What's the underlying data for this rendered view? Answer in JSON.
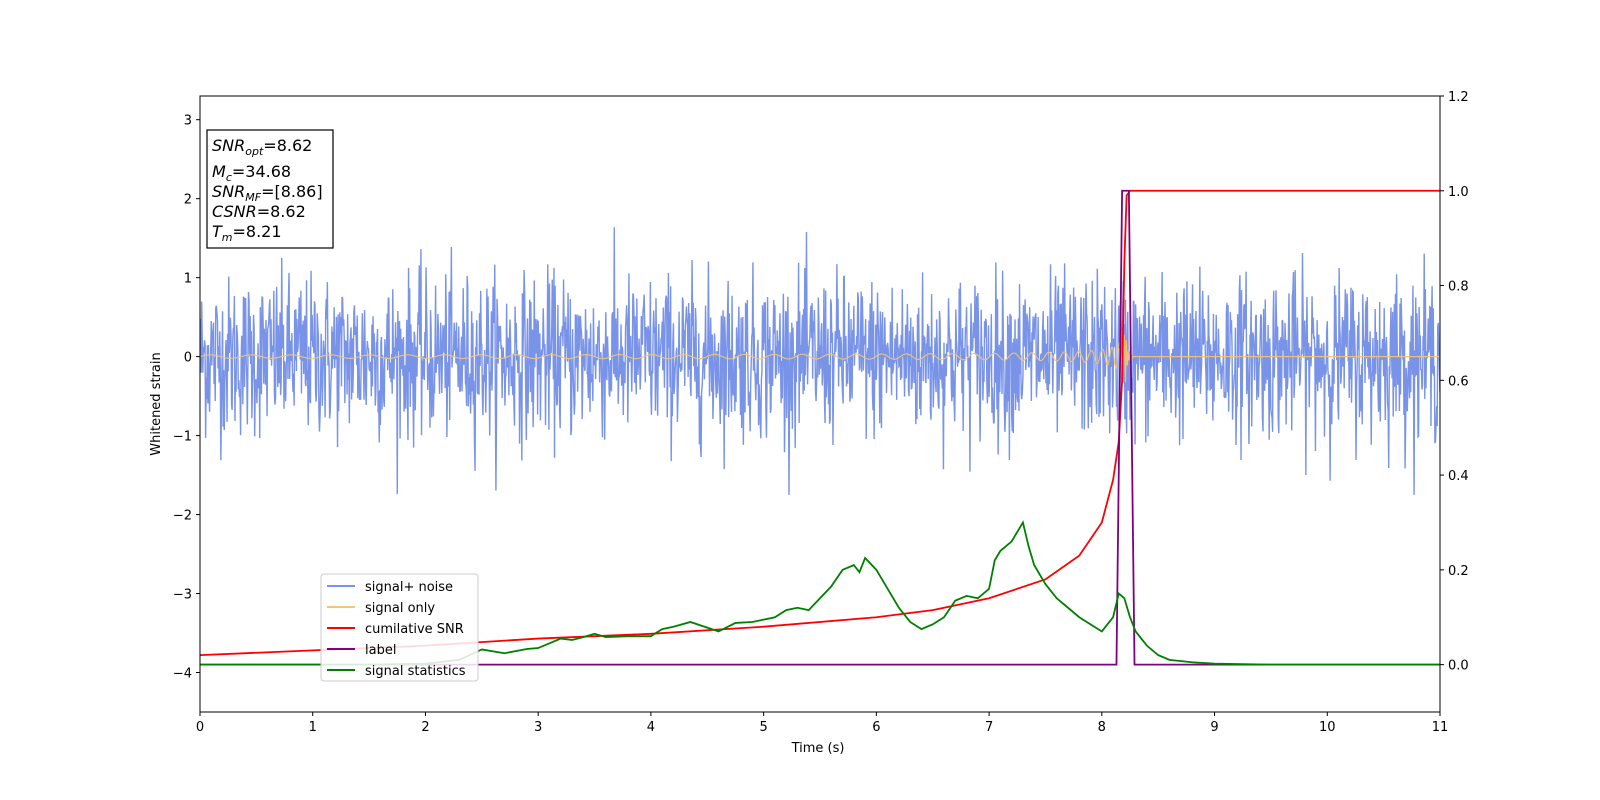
{
  "chart_data": {
    "type": "line",
    "xlabel": "Time (s)",
    "ylabel": "Whitened strain",
    "xlim": [
      0,
      11
    ],
    "ylim": [
      -4.5,
      3.3
    ],
    "ylim_right": [
      -0.1,
      1.2
    ],
    "xticks": [
      "0",
      "1",
      "2",
      "3",
      "4",
      "5",
      "6",
      "7",
      "8",
      "9",
      "10",
      "11"
    ],
    "yticks": [
      "3",
      "2",
      "1",
      "0",
      "−1",
      "−2",
      "−3",
      "−4"
    ],
    "yticks_right": [
      "0.0",
      "0.2",
      "0.4",
      "0.6",
      "0.8",
      "1.0",
      "1.2"
    ],
    "grid": false,
    "legend_position": "lower-left",
    "annotation": [
      {
        "main": "SNR",
        "sub": "opt",
        "rest": "=8.62"
      },
      {
        "main": "M",
        "sub": "c",
        "rest": "=34.68"
      },
      {
        "main": "SNR",
        "sub": "MF",
        "rest": "=[8.86]"
      },
      {
        "main": "CSNR",
        "sub": "",
        "rest": "=8.62"
      },
      {
        "main": "T",
        "sub": "m",
        "rest": "=8.21"
      }
    ],
    "series": [
      {
        "name": "signal+ noise",
        "axis": "left",
        "color": "#7893e8",
        "description_values": "whitened noise with amplitude about ±1, peaks to about ±1.8",
        "noise_sigma": 0.5
      },
      {
        "name": "signal only",
        "axis": "left",
        "color": "#f5c46e",
        "chirp_peak_time": 8.21,
        "chirp_peak_amplitude": 0.35
      },
      {
        "name": "cumilative SNR",
        "axis": "right",
        "color": "#ff0000",
        "x": [
          0,
          1,
          2,
          3,
          4,
          5,
          6,
          6.5,
          7,
          7.5,
          7.8,
          8.0,
          8.1,
          8.15,
          8.18,
          8.2,
          8.22,
          8.25,
          11
        ],
        "y": [
          0.02,
          0.03,
          0.04,
          0.055,
          0.065,
          0.08,
          0.1,
          0.115,
          0.14,
          0.18,
          0.23,
          0.3,
          0.39,
          0.47,
          0.6,
          0.85,
          0.99,
          1.0,
          1.0
        ]
      },
      {
        "name": "label",
        "axis": "right",
        "color": "#800080",
        "x": [
          0,
          8.13,
          8.18,
          8.24,
          8.29,
          11
        ],
        "y": [
          0,
          0,
          1.0,
          1.0,
          0,
          0
        ]
      },
      {
        "name": "signal statistics",
        "axis": "right",
        "color": "#008000",
        "x": [
          0,
          0.5,
          1.0,
          1.5,
          2.0,
          2.3,
          2.5,
          2.7,
          2.9,
          3.0,
          3.1,
          3.2,
          3.3,
          3.4,
          3.5,
          3.6,
          3.8,
          4.0,
          4.1,
          4.2,
          4.35,
          4.5,
          4.6,
          4.75,
          4.9,
          5.0,
          5.1,
          5.2,
          5.3,
          5.4,
          5.5,
          5.6,
          5.7,
          5.8,
          5.85,
          5.9,
          6.0,
          6.1,
          6.2,
          6.3,
          6.4,
          6.5,
          6.6,
          6.7,
          6.8,
          6.9,
          7.0,
          7.05,
          7.1,
          7.2,
          7.3,
          7.35,
          7.4,
          7.5,
          7.6,
          7.7,
          7.8,
          7.9,
          8.0,
          8.1,
          8.15,
          8.2,
          8.25,
          8.3,
          8.4,
          8.5,
          8.6,
          8.8,
          9.0,
          9.5,
          10,
          11
        ],
        "y": [
          0.0,
          0.0,
          0.0,
          0.0,
          0.002,
          0.01,
          0.032,
          0.024,
          0.033,
          0.035,
          0.045,
          0.055,
          0.052,
          0.058,
          0.065,
          0.058,
          0.06,
          0.06,
          0.075,
          0.08,
          0.09,
          0.078,
          0.07,
          0.088,
          0.09,
          0.095,
          0.1,
          0.115,
          0.12,
          0.115,
          0.14,
          0.165,
          0.2,
          0.21,
          0.195,
          0.225,
          0.2,
          0.16,
          0.12,
          0.09,
          0.075,
          0.085,
          0.1,
          0.135,
          0.145,
          0.14,
          0.16,
          0.22,
          0.24,
          0.26,
          0.3,
          0.25,
          0.21,
          0.17,
          0.14,
          0.12,
          0.1,
          0.085,
          0.07,
          0.1,
          0.15,
          0.14,
          0.1,
          0.07,
          0.04,
          0.02,
          0.01,
          0.005,
          0.002,
          0.0,
          0.0,
          0.0
        ]
      }
    ]
  }
}
